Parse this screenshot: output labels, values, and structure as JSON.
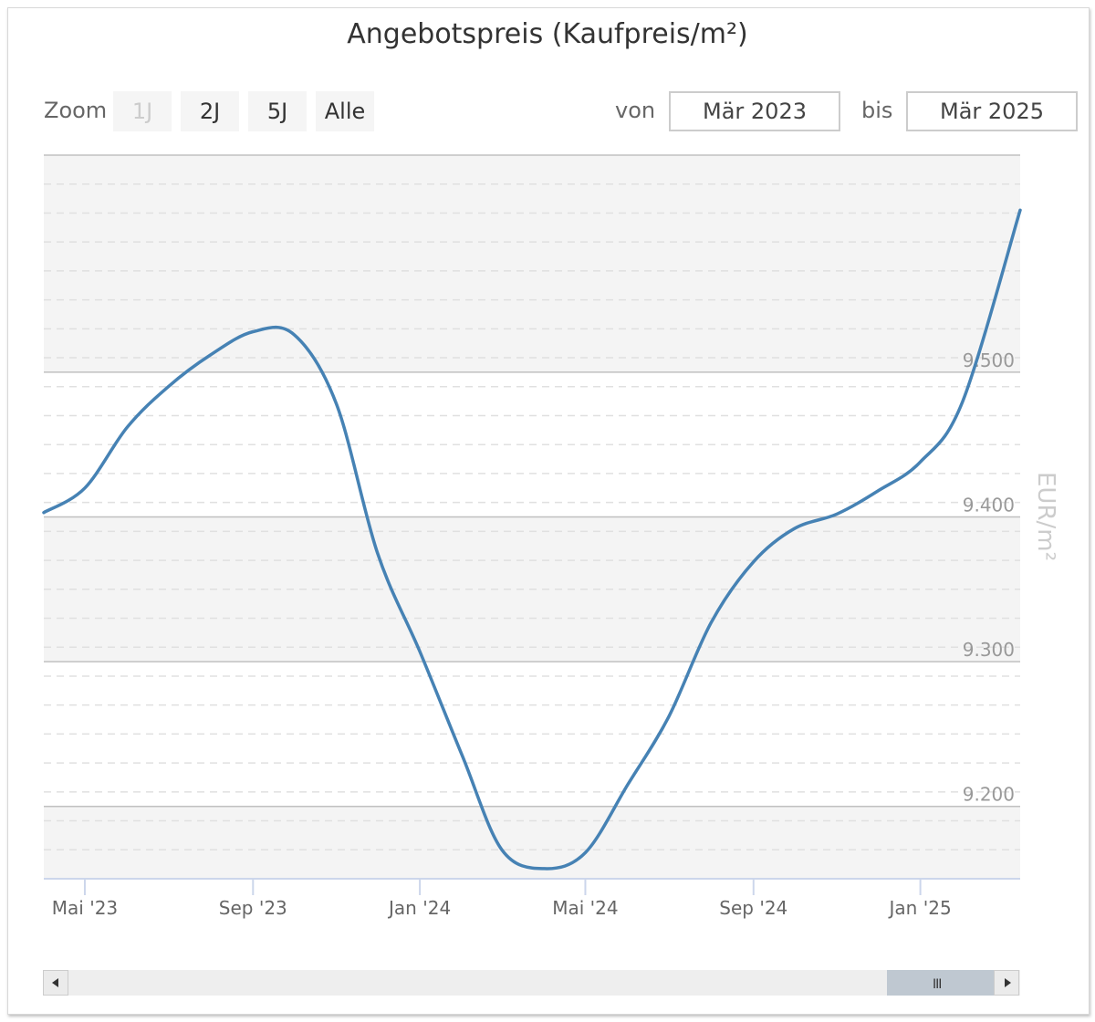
{
  "title": "Angebotspreis (Kaufpreis/m²)",
  "zoom": {
    "label": "Zoom",
    "buttons": [
      "1J",
      "2J",
      "5J",
      "Alle"
    ],
    "disabled": "1J"
  },
  "range": {
    "from_label": "von",
    "from_value": "Mär 2023",
    "to_label": "bis",
    "to_value": "Mär 2025"
  },
  "colors": {
    "line": "#4682b4",
    "band": "#f4f4f4",
    "grid_major": "#c0c0c0",
    "grid_minor": "#e0e0e0"
  },
  "chart_data": {
    "type": "line",
    "title": "Angebotspreis (Kaufpreis/m²)",
    "ylabel": "EUR/m²",
    "ylim": [
      9150,
      9650
    ],
    "yticks": [
      9200,
      9300,
      9400,
      9500
    ],
    "ytick_labels": [
      "9.200",
      "9.300",
      "9.400",
      "9.500"
    ],
    "xlim": [
      "2023-04-01",
      "2025-03-15"
    ],
    "xticks": [
      "2023-05-01",
      "2023-09-01",
      "2024-01-01",
      "2024-05-01",
      "2024-09-01",
      "2025-01-01"
    ],
    "xtick_labels": [
      "Mai '23",
      "Sep '23",
      "Jan '24",
      "Mai '24",
      "Sep '24",
      "Jan '25"
    ],
    "grid": true,
    "legend": "none",
    "series": [
      {
        "x": [
          "2023-04-01",
          "2023-05-01",
          "2023-06-01",
          "2023-07-01",
          "2023-08-01",
          "2023-09-01",
          "2023-10-01",
          "2023-11-01",
          "2023-12-01",
          "2024-01-01",
          "2024-02-01",
          "2024-03-01",
          "2024-04-01",
          "2024-05-01",
          "2024-06-01",
          "2024-07-01",
          "2024-08-01",
          "2024-09-01",
          "2024-10-01",
          "2024-11-01",
          "2024-12-01",
          "2025-01-01",
          "2025-02-01",
          "2025-03-15"
        ],
        "values": [
          9403,
          9420,
          9462,
          9490,
          9512,
          9528,
          9526,
          9478,
          9375,
          9307,
          9235,
          9170,
          9157,
          9168,
          9215,
          9262,
          9327,
          9369,
          9392,
          9402,
          9418,
          9438,
          9480,
          9612
        ]
      }
    ]
  },
  "scrollbar": {
    "grip": "III"
  }
}
